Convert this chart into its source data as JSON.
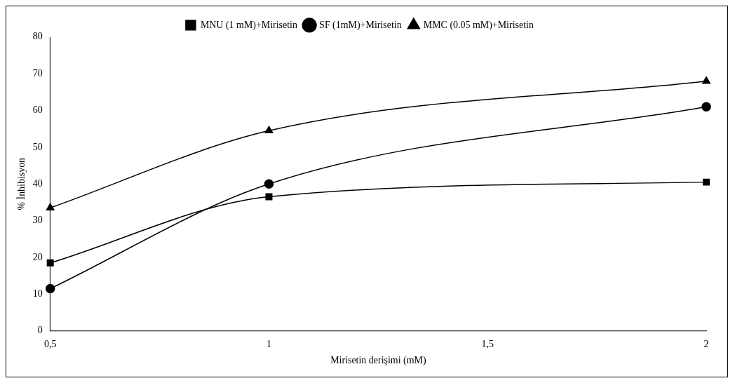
{
  "chart_data": {
    "type": "line",
    "xlabel": "Mirisetin derişimi (mM)",
    "ylabel": "% İnhibisyon",
    "x": [
      0.5,
      1,
      2
    ],
    "xlim": [
      0.5,
      2
    ],
    "xticks": [
      {
        "value": 0.5,
        "label": "0,5"
      },
      1,
      {
        "value": 1.5,
        "label": "1,5"
      },
      2
    ],
    "ylim": [
      0,
      80
    ],
    "yticks": [
      0,
      10,
      20,
      30,
      40,
      50,
      60,
      70,
      80
    ],
    "legend": "top",
    "grid": false,
    "series": [
      {
        "name": "MNU (1 mM)+Mirisetin",
        "color": "#000000",
        "marker": "square",
        "values": [
          18.5,
          36.5,
          40.5
        ]
      },
      {
        "name": "SF (1mM)+Mirisetin",
        "color": "#000000",
        "marker": "circle",
        "values": [
          11.5,
          40,
          61
        ]
      },
      {
        "name": "MMC (0.05 mM)+Mirisetin",
        "color": "#000000",
        "marker": "triangle",
        "values": [
          33.5,
          54.5,
          68
        ]
      }
    ]
  }
}
